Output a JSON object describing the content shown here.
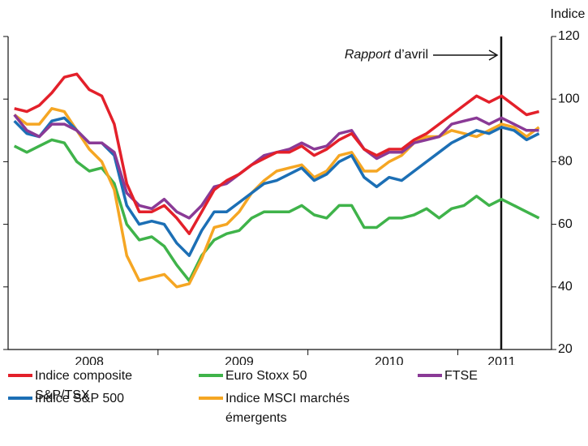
{
  "chart_data": {
    "type": "line",
    "y_axis_label": "Indice",
    "annotation_italic": "Rapport",
    "annotation_rest": "d’avril",
    "categories": [
      null,
      null,
      null,
      null,
      null,
      null,
      "2008",
      null,
      null,
      null,
      null,
      null,
      null,
      null,
      null,
      null,
      null,
      null,
      "2009",
      null,
      null,
      null,
      null,
      null,
      null,
      null,
      null,
      null,
      null,
      null,
      "2010",
      null,
      null,
      null,
      null,
      null,
      null,
      null,
      null,
      "2011",
      null,
      null,
      null
    ],
    "ylim": [
      20,
      120
    ],
    "yticks": [
      20,
      40,
      60,
      80,
      100,
      120
    ],
    "series": [
      {
        "name": "Indice composite S&P/TSX",
        "color": "#e3202a",
        "values": [
          97,
          96,
          98,
          102,
          107,
          108,
          103,
          101,
          92,
          73,
          64,
          64,
          66,
          62,
          57,
          64,
          71,
          74,
          76,
          79,
          81,
          83,
          83,
          85,
          82,
          84,
          87,
          89,
          84,
          82,
          84,
          84,
          87,
          89,
          92,
          95,
          98,
          101,
          99,
          101,
          98,
          95,
          96
        ]
      },
      {
        "name": "Euro Stoxx 50",
        "color": "#3fb34a",
        "values": [
          85,
          83,
          85,
          87,
          86,
          80,
          77,
          78,
          73,
          60,
          55,
          56,
          53,
          47,
          42,
          50,
          55,
          57,
          58,
          62,
          64,
          64,
          64,
          66,
          63,
          62,
          66,
          66,
          59,
          59,
          62,
          62,
          63,
          65,
          62,
          65,
          66,
          69,
          66,
          68,
          66,
          64,
          62
        ]
      },
      {
        "name": "FTSE",
        "color": "#8a3a96",
        "values": [
          95,
          90,
          88,
          92,
          92,
          90,
          86,
          86,
          83,
          70,
          66,
          65,
          68,
          64,
          62,
          66,
          72,
          73,
          76,
          79,
          82,
          83,
          84,
          86,
          84,
          85,
          89,
          90,
          84,
          81,
          83,
          83,
          86,
          87,
          88,
          92,
          93,
          94,
          92,
          94,
          92,
          90,
          90
        ]
      },
      {
        "name": "Indice S&P 500",
        "color": "#1c6fb5",
        "values": [
          93,
          89,
          88,
          93,
          94,
          90,
          86,
          86,
          82,
          66,
          60,
          61,
          60,
          54,
          50,
          58,
          64,
          64,
          67,
          70,
          73,
          74,
          76,
          78,
          74,
          76,
          80,
          82,
          75,
          72,
          75,
          74,
          77,
          80,
          83,
          86,
          88,
          90,
          89,
          91,
          90,
          87,
          89
        ]
      },
      {
        "name": "Indice MSCI marchés émergents",
        "color": "#f5a623",
        "values": [
          95,
          92,
          92,
          97,
          96,
          90,
          84,
          80,
          71,
          50,
          42,
          43,
          44,
          40,
          41,
          49,
          59,
          60,
          64,
          70,
          74,
          77,
          78,
          79,
          75,
          77,
          82,
          83,
          77,
          77,
          80,
          82,
          86,
          88,
          88,
          90,
          89,
          88,
          90,
          92,
          91,
          88,
          91
        ]
      }
    ]
  }
}
